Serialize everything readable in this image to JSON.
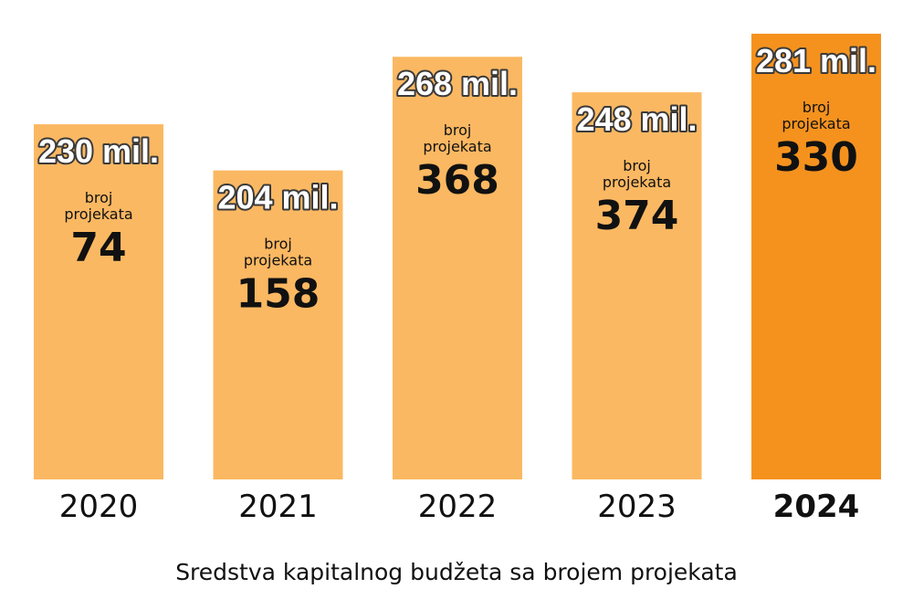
{
  "chart_data": {
    "type": "bar",
    "categories": [
      "2020",
      "2021",
      "2022",
      "2023",
      "2024"
    ],
    "series": [
      {
        "values": [
          230,
          204,
          268,
          248,
          281
        ]
      }
    ],
    "value_labels": [
      "230 mil.",
      "204 mil.",
      "268 mil.",
      "248 mil.",
      "281 mil."
    ],
    "project_label": "broj projekata",
    "project_counts": [
      74,
      158,
      368,
      374,
      330
    ],
    "highlight_index": 4,
    "caption": "Sredstva kapitalnog budžeta sa brojem projekata",
    "colors": {
      "bar": "#fbb862",
      "bar_highlight": "#f5921e",
      "text": "#111111"
    }
  }
}
